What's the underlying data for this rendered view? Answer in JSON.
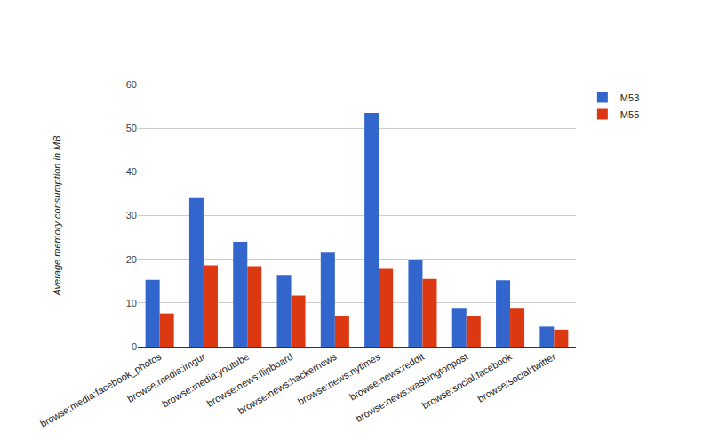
{
  "chart_data": {
    "type": "bar",
    "y_label": "Average memory consumption in MB",
    "categories": [
      "browse:media:facebook_photos",
      "browse:media:imgur",
      "browse:media:youtube",
      "browse:news:flipboard",
      "browse:news:hackernews",
      "browse:news:nytimes",
      "browse:news:reddit",
      "browse:news:washingtonpost",
      "browse:social:facebook",
      "browse:social:twitter"
    ],
    "series": [
      {
        "name": "M53",
        "color": "#3366cc",
        "values": [
          15.3,
          34.0,
          24.0,
          16.4,
          21.5,
          53.5,
          19.8,
          8.7,
          15.2,
          4.6
        ]
      },
      {
        "name": "M55",
        "color": "#dc3912",
        "values": [
          7.6,
          18.6,
          18.4,
          11.7,
          7.1,
          17.8,
          15.5,
          7.0,
          8.7,
          3.9
        ]
      }
    ],
    "ylim": [
      0,
      60
    ],
    "yticks": [
      0,
      10,
      20,
      30,
      40,
      50,
      60
    ],
    "grid": true,
    "legend": "top-right"
  }
}
